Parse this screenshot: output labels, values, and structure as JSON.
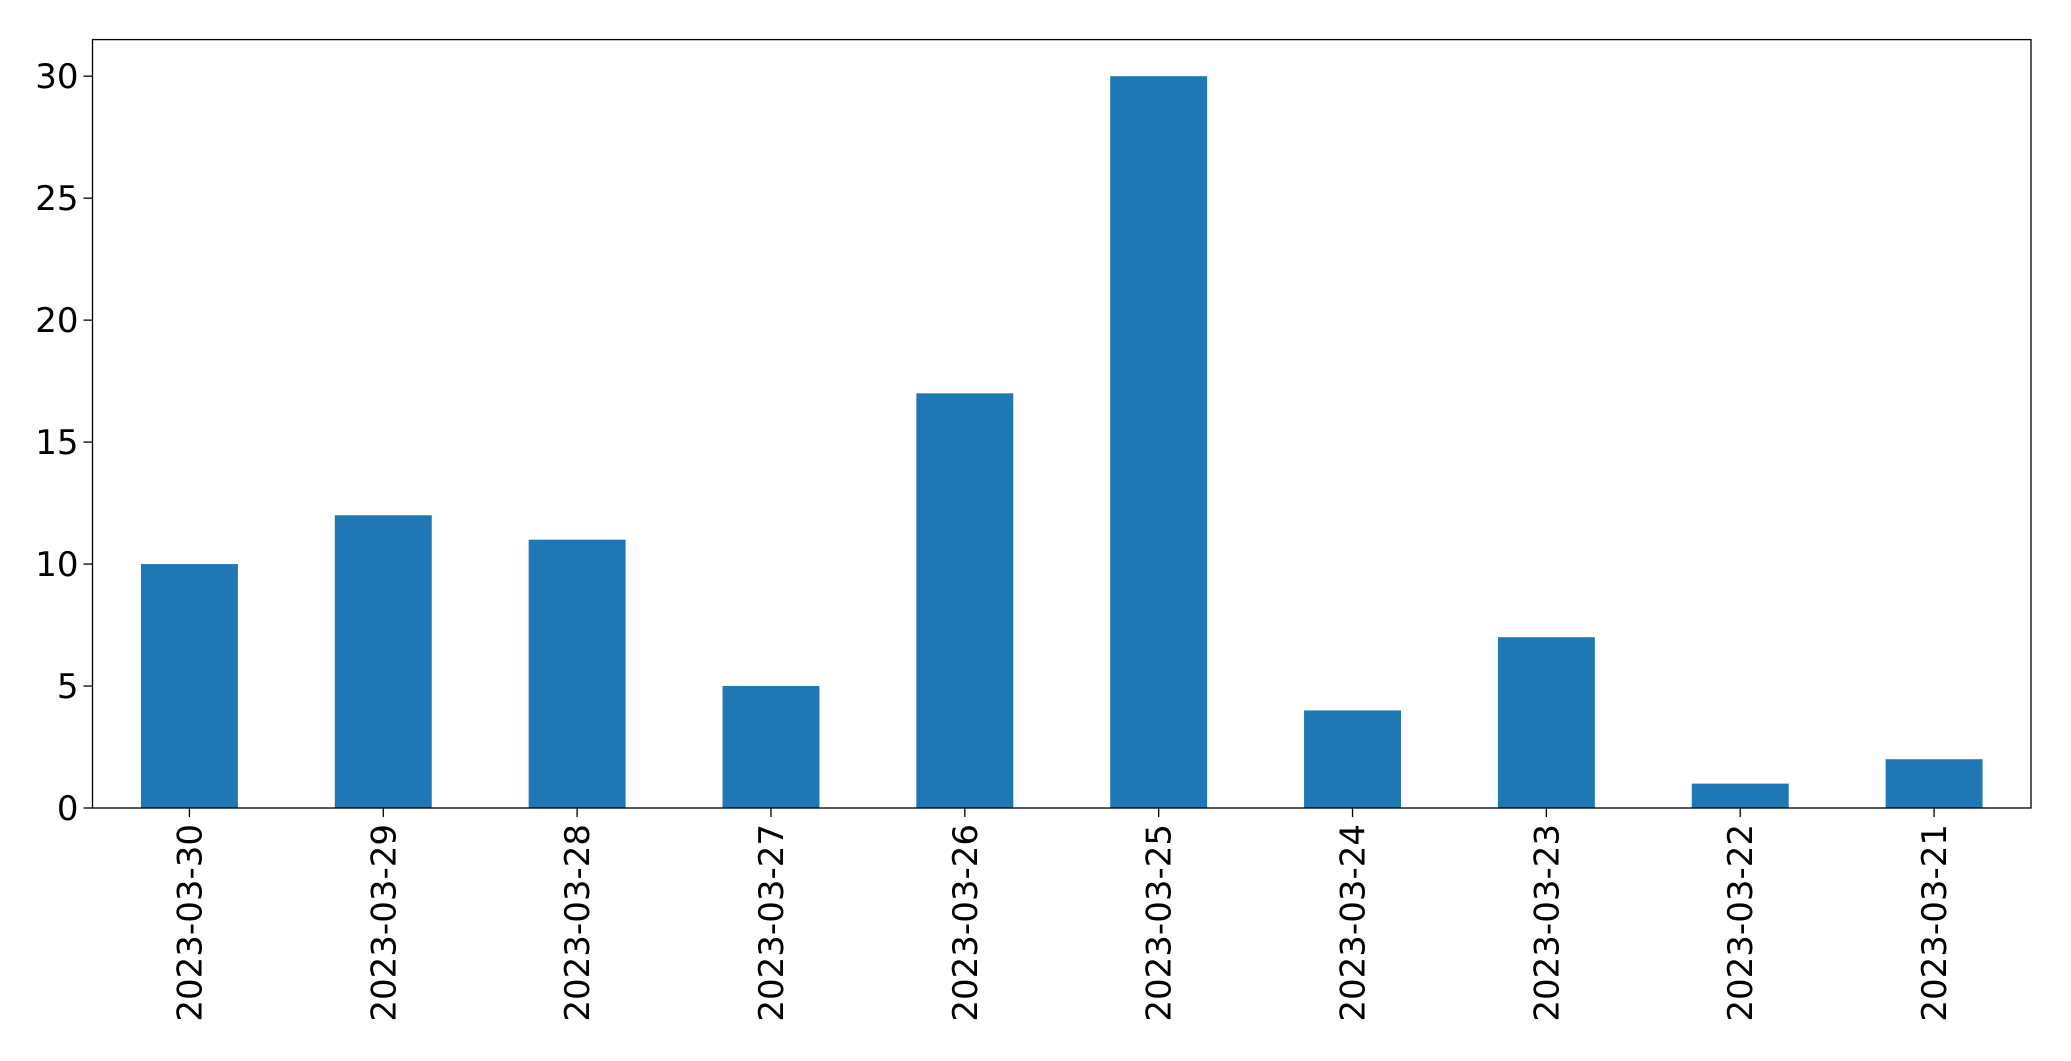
{
  "chart_data": {
    "type": "bar",
    "categories": [
      "2023-03-30",
      "2023-03-29",
      "2023-03-28",
      "2023-03-27",
      "2023-03-26",
      "2023-03-25",
      "2023-03-24",
      "2023-03-23",
      "2023-03-22",
      "2023-03-21"
    ],
    "values": [
      10,
      12,
      11,
      5,
      17,
      30,
      4,
      7,
      1,
      2
    ],
    "color": "#1f77b4",
    "ylim": [
      0,
      31.5
    ],
    "yticks": [
      0,
      5,
      10,
      15,
      20,
      25,
      30
    ],
    "grid": false
  }
}
